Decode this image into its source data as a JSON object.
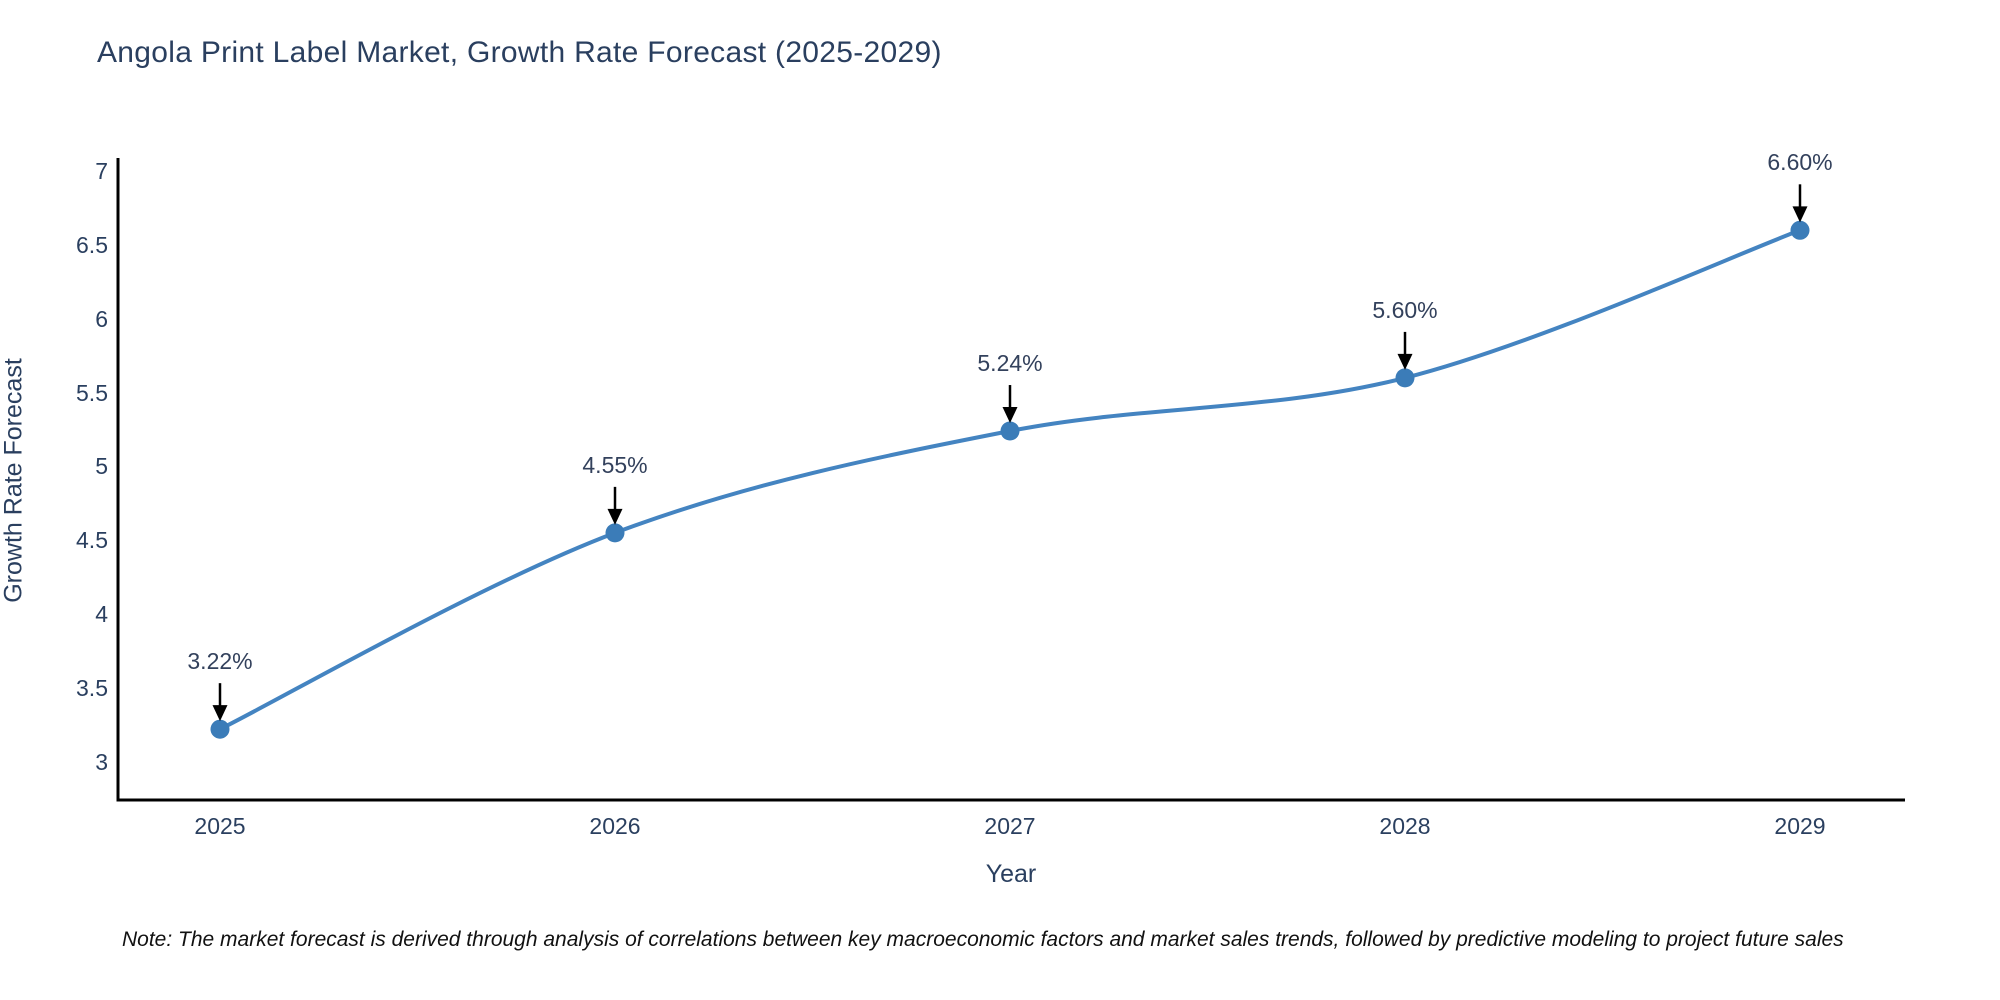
{
  "page": {
    "title": "Angola Print Label Market, Growth Rate Forecast (2025-2029)",
    "note": "Note: The market forecast is derived through analysis of correlations between key macroeconomic factors and market sales trends, followed by predictive modeling to project future sales"
  },
  "chart_data": {
    "type": "line",
    "title": "Angola Print Label Market, Growth Rate Forecast (2025-2029)",
    "xlabel": "Year",
    "ylabel": "Growth Rate Forecast",
    "categories": [
      "2025",
      "2026",
      "2027",
      "2028",
      "2029"
    ],
    "values": [
      3.22,
      4.55,
      5.24,
      5.6,
      6.6
    ],
    "point_labels": [
      "3.22%",
      "4.55%",
      "5.24%",
      "5.60%",
      "6.60%"
    ],
    "yticks": [
      3,
      3.5,
      4,
      4.5,
      5,
      5.5,
      6,
      6.5,
      7
    ],
    "ylim": [
      2.74,
      7.09
    ],
    "grid": false,
    "legend": "none",
    "line_shape": "spline",
    "annotations": "value labels with downward arrows above each point",
    "colors": {
      "line": "#4484c1",
      "marker": "#3b7cb8",
      "text": "#2a3f5f",
      "axis": "#000000",
      "annotation_arrow": "#000000",
      "note_text": "#111111",
      "background": "#ffffff"
    }
  }
}
